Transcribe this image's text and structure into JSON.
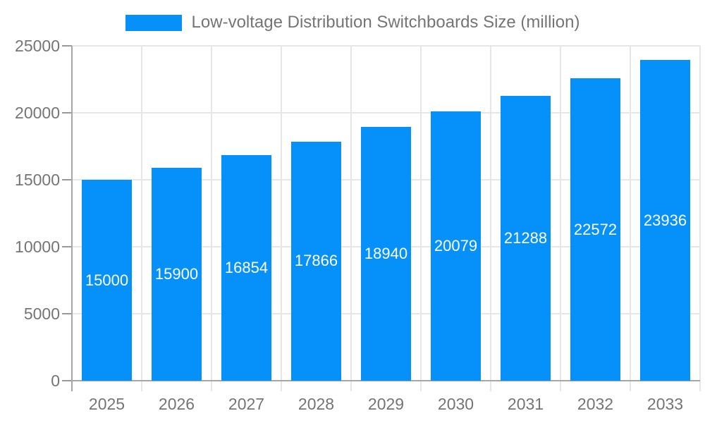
{
  "chart_data": {
    "type": "bar",
    "title": "Low-voltage Distribution Switchboards Size (million)",
    "legend": [
      "Low-voltage Distribution Switchboards Size (million)"
    ],
    "legend_position": "top",
    "categories": [
      "2025",
      "2026",
      "2027",
      "2028",
      "2029",
      "2030",
      "2031",
      "2032",
      "2033"
    ],
    "series": [
      {
        "name": "Low-voltage Distribution Switchboards Size (million)",
        "values": [
          15000,
          15900,
          16854,
          17866,
          18940,
          20079,
          21288,
          22572,
          23936
        ]
      }
    ],
    "bar_labels": [
      "15000",
      "15900",
      "16854",
      "17866",
      "18940",
      "20079",
      "21288",
      "22572",
      "23936"
    ],
    "xlabel": "",
    "ylabel": "",
    "ylim": [
      0,
      25000
    ],
    "yticks": [
      0,
      5000,
      10000,
      15000,
      20000,
      25000
    ],
    "ytick_labels": [
      "0",
      "5000",
      "10000",
      "15000",
      "20000",
      "25000"
    ],
    "grid": true,
    "colors": {
      "bar": "#0590fa",
      "bar_value_text": "#ffffff",
      "axis_text": "#757575",
      "grid_line": "#e6e6e6",
      "axis_line": "#a6a6a6",
      "tick_mark": "#999999"
    }
  }
}
